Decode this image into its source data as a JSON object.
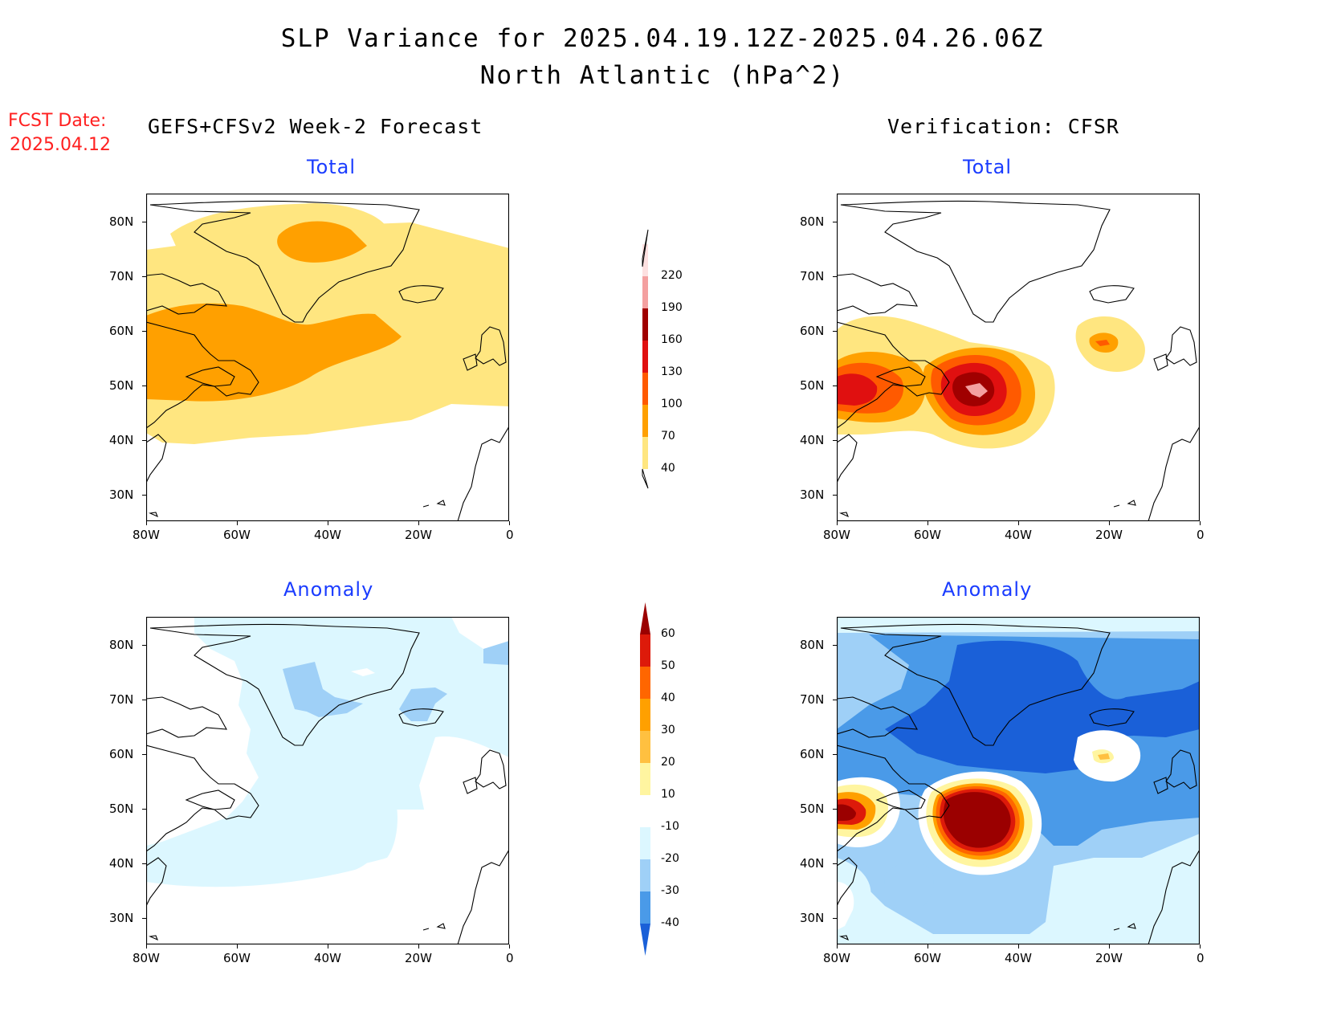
{
  "header": {
    "title_line1": "SLP Variance for 2025.04.19.12Z-2025.04.26.06Z",
    "title_line2": "North Atlantic (hPa^2)",
    "fcst_label": "FCST Date:",
    "fcst_date": "2025.04.12",
    "left_heading": "GEFS+CFSv2 Week-2 Forecast",
    "right_heading": "Verification: CFSR"
  },
  "panels": {
    "forecast_total": {
      "title": "Total"
    },
    "verification_total": {
      "title": "Total"
    },
    "forecast_anomaly": {
      "title": "Anomaly"
    },
    "verification_anomaly": {
      "title": "Anomaly"
    }
  },
  "axes": {
    "lon_ticks": [
      "80W",
      "60W",
      "40W",
      "20W",
      "0"
    ],
    "lat_ticks": [
      "80N",
      "70N",
      "60N",
      "50N",
      "40N",
      "30N"
    ]
  },
  "colorbars": {
    "total": {
      "labels": [
        "220",
        "190",
        "160",
        "130",
        "100",
        "70",
        "40"
      ],
      "colors": [
        "#fde0e0",
        "#f4a0a0",
        "#a00000",
        "#e01010",
        "#ff5a00",
        "#ffa000",
        "#ffe680"
      ]
    },
    "anomaly": {
      "labels": [
        "60",
        "50",
        "40",
        "30",
        "20",
        "10",
        "-10",
        "-20",
        "-30",
        "-40"
      ],
      "colors": [
        "#9b0000",
        "#dd1a0a",
        "#ff6600",
        "#ffa000",
        "#ffc040",
        "#fff5a0",
        "#ffffff",
        "#dcf7ff",
        "#9fd0f7",
        "#4a9ae8",
        "#1a60d8"
      ]
    }
  },
  "colors": {
    "title_text": "#000000",
    "fcst_text": "#ff2020",
    "panel_title_text": "#1a3cff",
    "coast": "#000000"
  }
}
